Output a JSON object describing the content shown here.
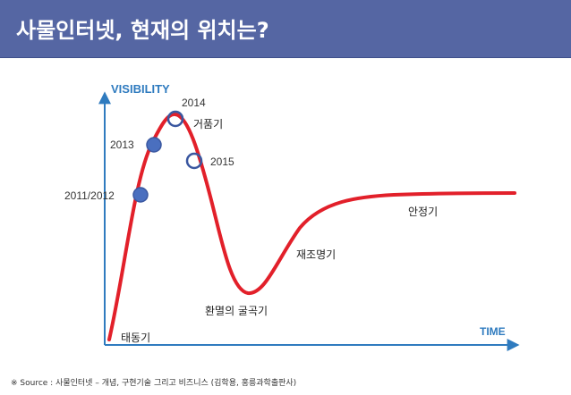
{
  "header": {
    "title": "사물인터넷, 현재의 위치는?",
    "bg_color": "#5566a3"
  },
  "axes": {
    "y_label": "VISIBILITY",
    "x_label": "TIME",
    "color": "#2f7bbf"
  },
  "curve": {
    "color": "#e2202a"
  },
  "markers": {
    "y2011": "2011/2012",
    "y2013": "2013",
    "y2014": "2014",
    "y2015": "2015",
    "filled_color": "#4a6fbf",
    "ring_color": "#3a57a0"
  },
  "phases": {
    "trigger": "태동기",
    "peak": "거품기",
    "trough": "환멸의 굴곡기",
    "slope": "재조명기",
    "plateau": "안정기"
  },
  "footer": {
    "source": "※ Source : 사물인터넷 – 개념, 구현기술 그리고 비즈니스 (김학용, 홍릉과학출판사)"
  }
}
